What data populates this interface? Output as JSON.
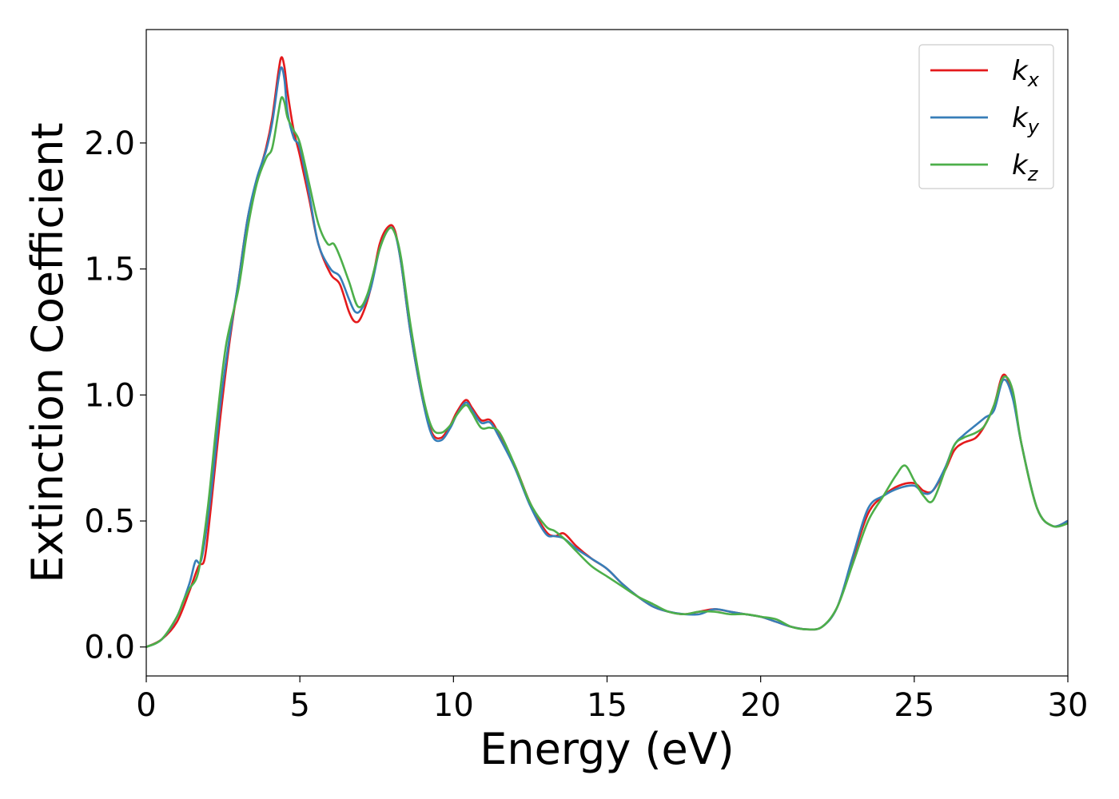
{
  "chart_data": {
    "type": "line",
    "xlabel": "Energy (eV)",
    "ylabel": "Extinction Coefficient",
    "xlim": [
      0,
      30
    ],
    "ylim": [
      -0.115,
      2.45
    ],
    "xticks": [
      0,
      5,
      10,
      15,
      20,
      25,
      30
    ],
    "xtick_labels": [
      "0",
      "5",
      "10",
      "15",
      "20",
      "25",
      "30"
    ],
    "yticks": [
      0.0,
      0.5,
      1.0,
      1.5,
      2.0
    ],
    "ytick_labels": [
      "0.0",
      "0.5",
      "1.0",
      "1.5",
      "2.0"
    ],
    "grid": false,
    "legend_position": "top-right",
    "series": [
      {
        "name": "k_x",
        "label_base": "k",
        "label_sub": "x",
        "color": "#e41a1c",
        "x": [
          0,
          0.5,
          1,
          1.4,
          1.7,
          1.9,
          2.1,
          2.4,
          2.7,
          3,
          3.3,
          3.6,
          3.9,
          4.1,
          4.3,
          4.4,
          4.5,
          4.6,
          4.8,
          5,
          5.3,
          5.6,
          6,
          6.3,
          6.6,
          6.8,
          7,
          7.3,
          7.6,
          7.9,
          8.1,
          8.3,
          8.6,
          9,
          9.3,
          9.6,
          9.9,
          10.1,
          10.4,
          10.6,
          10.9,
          11.2,
          11.5,
          12,
          12.5,
          13,
          13.3,
          13.6,
          14,
          14.5,
          15,
          15.5,
          16,
          16.5,
          17,
          17.5,
          18,
          18.5,
          19,
          19.5,
          20,
          20.5,
          21,
          21.5,
          22,
          22.5,
          23,
          23.5,
          24,
          24.5,
          25,
          25.3,
          25.6,
          26,
          26.3,
          26.6,
          27,
          27.3,
          27.6,
          27.9,
          28.2,
          28.5,
          29,
          29.5,
          30
        ],
        "y": [
          0,
          0.03,
          0.1,
          0.22,
          0.32,
          0.35,
          0.55,
          0.9,
          1.2,
          1.45,
          1.7,
          1.85,
          1.98,
          2.1,
          2.28,
          2.34,
          2.3,
          2.2,
          2.05,
          1.95,
          1.78,
          1.6,
          1.48,
          1.44,
          1.33,
          1.29,
          1.31,
          1.42,
          1.6,
          1.67,
          1.65,
          1.52,
          1.25,
          0.98,
          0.85,
          0.83,
          0.88,
          0.93,
          0.98,
          0.95,
          0.9,
          0.9,
          0.84,
          0.72,
          0.57,
          0.46,
          0.44,
          0.45,
          0.4,
          0.35,
          0.31,
          0.25,
          0.2,
          0.16,
          0.14,
          0.13,
          0.14,
          0.15,
          0.14,
          0.13,
          0.12,
          0.1,
          0.08,
          0.07,
          0.08,
          0.16,
          0.35,
          0.53,
          0.6,
          0.64,
          0.65,
          0.62,
          0.62,
          0.7,
          0.78,
          0.81,
          0.83,
          0.88,
          0.96,
          1.08,
          1.0,
          0.8,
          0.55,
          0.48,
          0.5
        ]
      },
      {
        "name": "k_y",
        "label_base": "k",
        "label_sub": "y",
        "color": "#377eb8",
        "x": [
          0,
          0.5,
          1,
          1.4,
          1.6,
          1.8,
          2.1,
          2.4,
          2.7,
          3,
          3.3,
          3.6,
          3.9,
          4.1,
          4.3,
          4.4,
          4.5,
          4.6,
          4.8,
          5,
          5.3,
          5.6,
          6,
          6.3,
          6.6,
          6.8,
          7,
          7.3,
          7.6,
          7.9,
          8.1,
          8.3,
          8.6,
          9,
          9.3,
          9.6,
          9.9,
          10.1,
          10.4,
          10.6,
          10.9,
          11.2,
          11.5,
          12,
          12.5,
          13,
          13.3,
          13.6,
          14,
          14.5,
          15,
          15.5,
          16,
          16.5,
          17,
          17.5,
          18,
          18.5,
          19,
          19.5,
          20,
          20.5,
          21,
          21.5,
          22,
          22.5,
          23,
          23.5,
          24,
          24.5,
          25,
          25.3,
          25.6,
          26,
          26.3,
          26.6,
          27,
          27.3,
          27.6,
          27.9,
          28.2,
          28.5,
          29,
          29.5,
          30
        ],
        "y": [
          0,
          0.03,
          0.12,
          0.25,
          0.34,
          0.35,
          0.6,
          0.95,
          1.22,
          1.45,
          1.7,
          1.86,
          1.97,
          2.08,
          2.25,
          2.3,
          2.25,
          2.12,
          2.02,
          1.98,
          1.8,
          1.6,
          1.5,
          1.47,
          1.38,
          1.33,
          1.34,
          1.42,
          1.58,
          1.66,
          1.64,
          1.52,
          1.25,
          0.98,
          0.84,
          0.82,
          0.87,
          0.92,
          0.97,
          0.94,
          0.89,
          0.89,
          0.83,
          0.71,
          0.56,
          0.45,
          0.44,
          0.43,
          0.39,
          0.35,
          0.31,
          0.25,
          0.2,
          0.16,
          0.14,
          0.13,
          0.13,
          0.15,
          0.14,
          0.13,
          0.12,
          0.1,
          0.08,
          0.07,
          0.08,
          0.16,
          0.36,
          0.55,
          0.6,
          0.63,
          0.64,
          0.61,
          0.62,
          0.71,
          0.8,
          0.84,
          0.88,
          0.91,
          0.94,
          1.06,
          0.99,
          0.8,
          0.55,
          0.48,
          0.5
        ]
      },
      {
        "name": "k_z",
        "label_base": "k",
        "label_sub": "z",
        "color": "#4daf4a",
        "x": [
          0,
          0.5,
          1,
          1.2,
          1.4,
          1.7,
          2,
          2.3,
          2.6,
          3,
          3.3,
          3.6,
          3.9,
          4.1,
          4.3,
          4.4,
          4.5,
          4.6,
          4.8,
          5,
          5.3,
          5.6,
          5.9,
          6.1,
          6.3,
          6.6,
          6.9,
          7.2,
          7.6,
          7.9,
          8.1,
          8.3,
          8.6,
          9,
          9.3,
          9.6,
          9.9,
          10.1,
          10.4,
          10.6,
          10.9,
          11.2,
          11.5,
          12,
          12.5,
          13,
          13.3,
          13.6,
          14,
          14.5,
          15,
          15.5,
          16,
          16.5,
          17,
          17.5,
          18,
          18.5,
          19,
          19.5,
          20,
          20.5,
          21,
          21.5,
          22,
          22.5,
          23,
          23.5,
          24,
          24.4,
          24.7,
          25,
          25.3,
          25.6,
          26,
          26.3,
          26.6,
          27,
          27.3,
          27.6,
          27.9,
          28.2,
          28.5,
          29,
          29.5,
          30
        ],
        "y": [
          0,
          0.03,
          0.12,
          0.18,
          0.23,
          0.3,
          0.55,
          0.9,
          1.2,
          1.42,
          1.66,
          1.84,
          1.94,
          1.98,
          2.12,
          2.18,
          2.16,
          2.1,
          2.05,
          2.0,
          1.84,
          1.68,
          1.6,
          1.6,
          1.55,
          1.45,
          1.35,
          1.4,
          1.58,
          1.66,
          1.64,
          1.54,
          1.28,
          1.0,
          0.87,
          0.85,
          0.88,
          0.92,
          0.96,
          0.93,
          0.87,
          0.87,
          0.85,
          0.72,
          0.57,
          0.48,
          0.46,
          0.43,
          0.38,
          0.32,
          0.28,
          0.24,
          0.2,
          0.17,
          0.14,
          0.13,
          0.14,
          0.14,
          0.13,
          0.13,
          0.12,
          0.11,
          0.08,
          0.07,
          0.08,
          0.16,
          0.33,
          0.5,
          0.6,
          0.68,
          0.72,
          0.66,
          0.6,
          0.58,
          0.7,
          0.8,
          0.83,
          0.85,
          0.88,
          0.96,
          1.07,
          1.02,
          0.8,
          0.55,
          0.48,
          0.49
        ]
      }
    ]
  }
}
